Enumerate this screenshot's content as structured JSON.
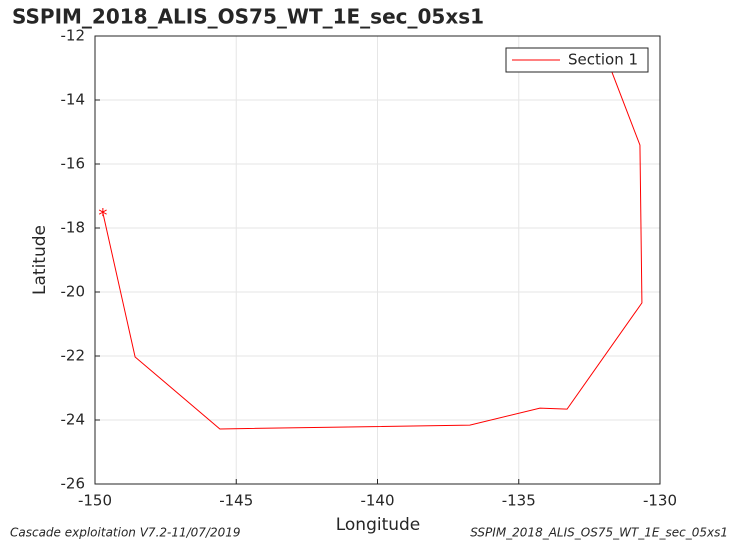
{
  "chart_data": {
    "type": "line",
    "title": "SSPIM_2018_ALIS_OS75_WT_1E_sec_05xs1",
    "xlabel": "Longitude",
    "ylabel": "Latitude",
    "footer_left": "Cascade exploitation V7.2-11/07/2019",
    "footer_right": "SSPIM_2018_ALIS_OS75_WT_1E_sec_05xs1",
    "x": [
      -149.72,
      -148.58,
      -145.58,
      -136.73,
      -134.25,
      -133.29,
      -130.64,
      -130.71,
      -131.84,
      -131.9
    ],
    "series": [
      {
        "name": "Section 1",
        "color": "#ff0000",
        "start_marker": "*",
        "values": [
          -17.53,
          -22.03,
          -24.28,
          -24.16,
          -23.63,
          -23.66,
          -20.34,
          -15.41,
          -12.81,
          -12.66
        ]
      }
    ],
    "xlim": [
      -150,
      -130
    ],
    "xticks": [
      -150,
      -145,
      -140,
      -135,
      -130
    ],
    "ylim": [
      -26,
      -12
    ],
    "yticks": [
      -26,
      -24,
      -22,
      -20,
      -18,
      -16,
      -14,
      -12
    ],
    "grid": true,
    "legend": "top-right"
  }
}
